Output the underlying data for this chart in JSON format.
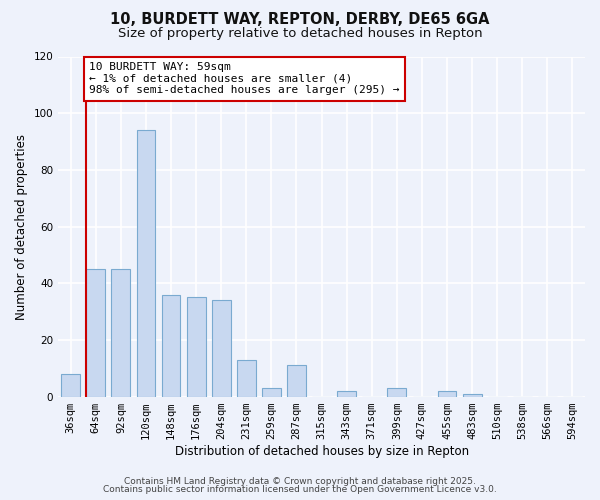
{
  "title": "10, BURDETT WAY, REPTON, DERBY, DE65 6GA",
  "subtitle": "Size of property relative to detached houses in Repton",
  "xlabel": "Distribution of detached houses by size in Repton",
  "ylabel": "Number of detached properties",
  "bins": [
    "36sqm",
    "64sqm",
    "92sqm",
    "120sqm",
    "148sqm",
    "176sqm",
    "204sqm",
    "231sqm",
    "259sqm",
    "287sqm",
    "315sqm",
    "343sqm",
    "371sqm",
    "399sqm",
    "427sqm",
    "455sqm",
    "483sqm",
    "510sqm",
    "538sqm",
    "566sqm",
    "594sqm"
  ],
  "counts": [
    8,
    45,
    45,
    94,
    36,
    35,
    34,
    13,
    3,
    11,
    0,
    2,
    0,
    3,
    0,
    2,
    1,
    0,
    0,
    0,
    0
  ],
  "bar_color": "#c8d8f0",
  "bar_edgecolor": "#7aaad0",
  "highlight_line_color": "#cc0000",
  "annotation_box_text": "10 BURDETT WAY: 59sqm\n← 1% of detached houses are smaller (4)\n98% of semi-detached houses are larger (295) →",
  "annotation_box_color": "#ffffff",
  "annotation_box_edgecolor": "#cc0000",
  "ylim": [
    0,
    120
  ],
  "yticks": [
    0,
    20,
    40,
    60,
    80,
    100,
    120
  ],
  "footer_line1": "Contains HM Land Registry data © Crown copyright and database right 2025.",
  "footer_line2": "Contains public sector information licensed under the Open Government Licence v3.0.",
  "bg_color": "#eef2fb",
  "title_fontsize": 10.5,
  "subtitle_fontsize": 9.5,
  "axis_label_fontsize": 8.5,
  "tick_fontsize": 7.5,
  "annotation_fontsize": 8,
  "footer_fontsize": 6.5
}
